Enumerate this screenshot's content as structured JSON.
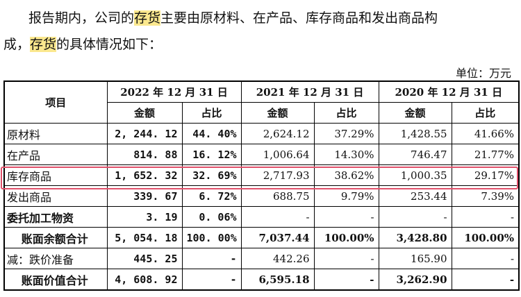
{
  "paragraph": {
    "line1_a": "报告期内，公司的",
    "line1_hl": "存货",
    "line1_b": "主要由原材料、在产品、库存商品和发出商品构",
    "line2_a": "成，",
    "line2_hl": "存货",
    "line2_b": "的具体情况如下："
  },
  "unit_label": "单位：万元",
  "table": {
    "header_item": "项目",
    "years": [
      "2022 年 12 月 31 日",
      "2021 年 12 月 31 日",
      "2020 年 12 月 31 日"
    ],
    "sub_amount": "金额",
    "sub_ratio": "占比",
    "rows": [
      {
        "label": "原材料",
        "c": [
          "2, 244. 12",
          "44. 40%",
          "2,624.12",
          "37.29%",
          "1,428.55",
          "41.66%"
        ]
      },
      {
        "label": "在产品",
        "c": [
          "814. 88",
          "16. 12%",
          "1,006.64",
          "14.30%",
          "746.47",
          "21.77%"
        ]
      },
      {
        "label": "库存商品",
        "c": [
          "1, 652. 32",
          "32. 69%",
          "2,717.93",
          "38.62%",
          "1,000.35",
          "29.17%"
        ]
      },
      {
        "label": "发出商品",
        "c": [
          "339. 67",
          "6. 72%",
          "688.75",
          "9.79%",
          "253.44",
          "7.39%"
        ]
      },
      {
        "label": "委托加工物资",
        "c": [
          "3. 19",
          "0. 06%",
          "-",
          "-",
          "-",
          "-"
        ]
      },
      {
        "label": "账面余额合计",
        "c": [
          "5, 054. 18",
          "100. 00%",
          "7,037.44",
          "100.00%",
          "3,428.80",
          "100.00%"
        ]
      },
      {
        "label": "减：跌价准备",
        "c": [
          "445. 25",
          "-",
          "442.26",
          "-",
          "165.90",
          "-"
        ]
      },
      {
        "label": "账面价值合计",
        "c": [
          "4, 608. 92",
          "-",
          "6,595.18",
          "-",
          "3,262.90",
          "-"
        ]
      }
    ]
  }
}
